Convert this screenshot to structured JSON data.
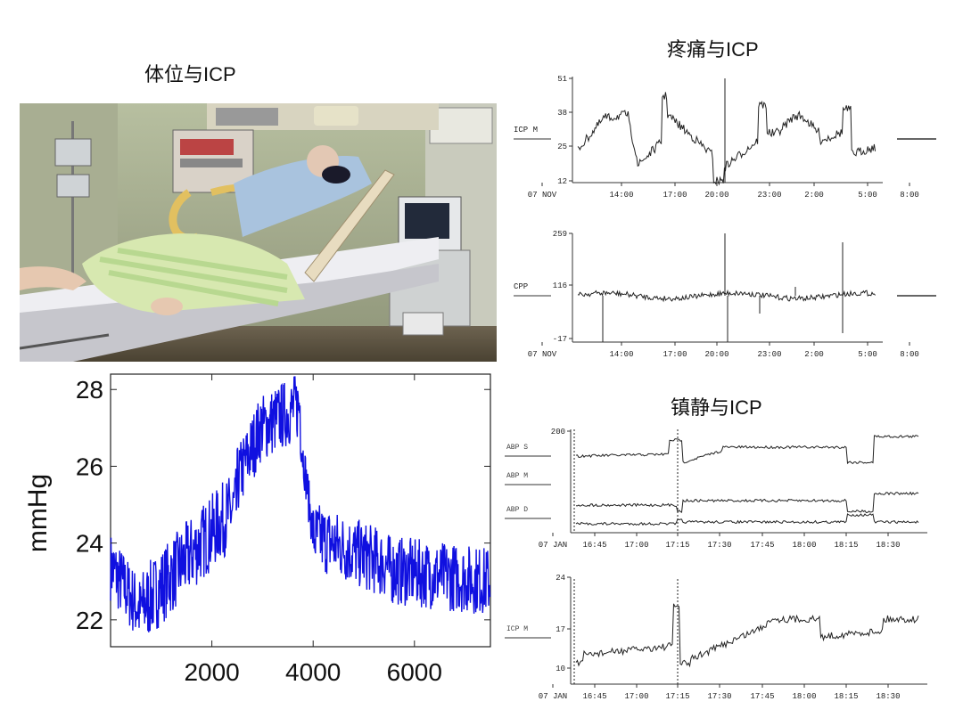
{
  "titles": {
    "posture": "体位与ICP",
    "pain": "疼痛与ICP",
    "sedation": "镇静与ICP"
  },
  "chart_data": [
    {
      "type": "line",
      "name_ref": "posture_icp",
      "ylabel": "mmHg",
      "xlabel": "",
      "xlim": [
        0,
        7500
      ],
      "ylim": [
        21.3,
        28.4
      ],
      "x_ticks": [
        2000,
        4000,
        6000
      ],
      "y_ticks": [
        22,
        24,
        26,
        28
      ],
      "color": "#1010e0",
      "grid": false,
      "segments": [
        {
          "x": [
            0,
            600
          ],
          "y_start": 23.4,
          "y_end": 22.2,
          "noise": 0.9
        },
        {
          "x": [
            600,
            2500
          ],
          "y_start": 22.3,
          "y_end": 25.0,
          "noise": 1.0
        },
        {
          "x": [
            2500,
            3000
          ],
          "y_start": 25.6,
          "y_end": 27.1,
          "noise": 0.9
        },
        {
          "x": [
            3000,
            3750
          ],
          "y_start": 27.0,
          "y_end": 27.6,
          "noise": 0.9
        },
        {
          "x": [
            3750,
            4000
          ],
          "y_start": 26.8,
          "y_end": 24.2,
          "noise": 0.6
        },
        {
          "x": [
            4000,
            5500
          ],
          "y_start": 24.2,
          "y_end": 23.4,
          "noise": 0.9
        },
        {
          "x": [
            5500,
            7500
          ],
          "y_start": 23.3,
          "y_end": 23.0,
          "noise": 0.9
        }
      ]
    },
    {
      "type": "line",
      "name_ref": "pain_icp",
      "ylabel": "ICP M",
      "y_ticks": [
        "51",
        "38",
        "25",
        "12"
      ],
      "x_ticks": [
        "07 NOV",
        "14:00",
        "17:00",
        "20:00",
        "23:00",
        "2:00",
        "5:00",
        "8:00"
      ],
      "ylim": [
        12,
        51
      ]
    },
    {
      "type": "line",
      "name_ref": "pain_cpp",
      "ylabel": "CPP",
      "y_ticks": [
        "259",
        "116",
        "-17"
      ],
      "x_ticks": [
        "07 NOV",
        "14:00",
        "17:00",
        "20:00",
        "23:00",
        "2:00",
        "5:00",
        "8:00"
      ],
      "ylim": [
        -17,
        259
      ]
    },
    {
      "type": "line",
      "name_ref": "sedation_abp",
      "series": [
        {
          "name": "ABP S"
        },
        {
          "name": "ABP M"
        },
        {
          "name": "ABP D"
        }
      ],
      "y_ticks": [
        "200"
      ],
      "x_ticks": [
        "07 JAN",
        "16:45",
        "17:00",
        "17:15",
        "17:30",
        "17:45",
        "18:00",
        "18:15",
        "18:30"
      ]
    },
    {
      "type": "line",
      "name_ref": "sedation_icp",
      "ylabel": "ICP M",
      "y_ticks": [
        "24",
        "17",
        "10"
      ],
      "x_ticks": [
        "07 JAN",
        "16:45",
        "17:00",
        "17:15",
        "17:30",
        "17:45",
        "18:00",
        "18:15",
        "18:30"
      ]
    }
  ]
}
